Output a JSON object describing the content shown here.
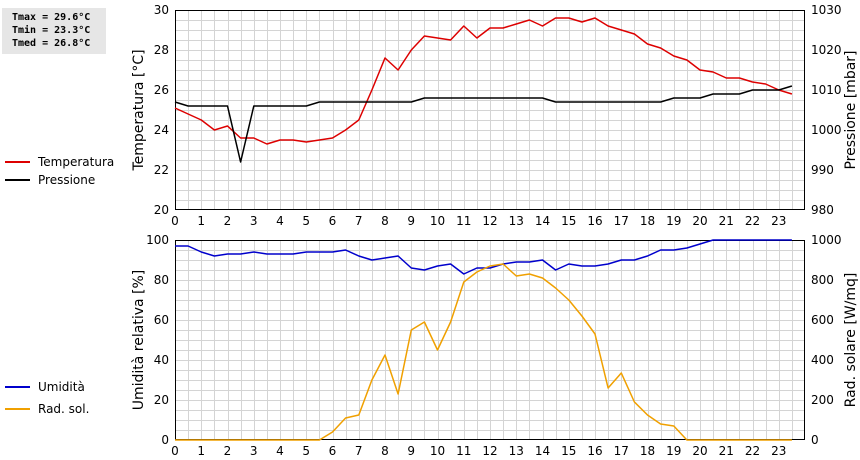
{
  "stats": {
    "tmax": "Tmax = 29.6°C",
    "tmin": "Tmin = 23.3°C",
    "tmed": "Tmed = 26.8°C"
  },
  "colors": {
    "temperature": "#dd0000",
    "pressure": "#000000",
    "humidity": "#0000cc",
    "radiation": "#f0a000",
    "grid": "#d4d4d4",
    "frame": "#000000"
  },
  "chart_data": [
    {
      "type": "line",
      "grid": true,
      "legend_placement": "left",
      "xlabel": "",
      "x_ticks": [
        "0",
        "1",
        "2",
        "3",
        "4",
        "5",
        "6",
        "7",
        "8",
        "9",
        "10",
        "11",
        "12",
        "13",
        "14",
        "15",
        "16",
        "17",
        "18",
        "19",
        "20",
        "21",
        "22",
        "23"
      ],
      "xlim": [
        0,
        24
      ],
      "ylabel_left": "Temperatura [°C]",
      "ylim_left": [
        20,
        30
      ],
      "yticks_left": [
        "20",
        "22",
        "24",
        "26",
        "28",
        "30"
      ],
      "ylabel_right": "Pressione [mbar]",
      "ylim_right": [
        980,
        1030
      ],
      "yticks_right": [
        "980",
        "990",
        "1000",
        "1010",
        "1020",
        "1030"
      ],
      "series": [
        {
          "name": "Temperatura",
          "axis": "left",
          "x": [
            0,
            0.5,
            1,
            1.5,
            2,
            2.5,
            3,
            3.5,
            4,
            4.5,
            5,
            5.5,
            6,
            6.5,
            7,
            7.5,
            8,
            8.5,
            9,
            9.5,
            10,
            10.5,
            11,
            11.5,
            12,
            12.5,
            13,
            13.5,
            14,
            14.5,
            15,
            15.5,
            16,
            16.5,
            17,
            17.5,
            18,
            18.5,
            19,
            19.5,
            20,
            20.5,
            21,
            21.5,
            22,
            22.5,
            23,
            23.5
          ],
          "y": [
            25.1,
            24.8,
            24.5,
            24.0,
            24.2,
            23.6,
            23.6,
            23.3,
            23.5,
            23.5,
            23.4,
            23.5,
            23.6,
            24.0,
            24.5,
            26.0,
            27.6,
            27.0,
            28.0,
            28.7,
            28.6,
            28.5,
            29.2,
            28.6,
            29.1,
            29.1,
            29.3,
            29.5,
            29.2,
            29.6,
            29.6,
            29.4,
            29.6,
            29.2,
            29.0,
            28.8,
            28.3,
            28.1,
            27.7,
            27.5,
            27.0,
            26.9,
            26.6,
            26.6,
            26.4,
            26.3,
            26.0,
            25.8
          ]
        },
        {
          "name": "Pressione",
          "axis": "right",
          "x": [
            0,
            0.5,
            1,
            1.5,
            2,
            2.5,
            3,
            3.5,
            4,
            4.5,
            5,
            5.5,
            6,
            6.5,
            7,
            7.5,
            8,
            8.5,
            9,
            9.5,
            10,
            10.5,
            11,
            11.5,
            12,
            12.5,
            13,
            13.5,
            14,
            14.5,
            15,
            15.5,
            16,
            16.5,
            17,
            17.5,
            18,
            18.5,
            19,
            19.5,
            20,
            20.5,
            21,
            21.5,
            22,
            22.5,
            23,
            23.5
          ],
          "y": [
            1007,
            1006,
            1006,
            1006,
            1006,
            992,
            1006,
            1006,
            1006,
            1006,
            1006,
            1007,
            1007,
            1007,
            1007,
            1007,
            1007,
            1007,
            1007,
            1008,
            1008,
            1008,
            1008,
            1008,
            1008,
            1008,
            1008,
            1008,
            1008,
            1007,
            1007,
            1007,
            1007,
            1007,
            1007,
            1007,
            1007,
            1007,
            1008,
            1008,
            1008,
            1009,
            1009,
            1009,
            1010,
            1010,
            1010,
            1011
          ]
        }
      ]
    },
    {
      "type": "line",
      "grid": true,
      "legend_placement": "left",
      "xlabel": "",
      "x_ticks": [
        "0",
        "1",
        "2",
        "3",
        "4",
        "5",
        "6",
        "7",
        "8",
        "9",
        "10",
        "11",
        "12",
        "13",
        "14",
        "15",
        "16",
        "17",
        "18",
        "19",
        "20",
        "21",
        "22",
        "23"
      ],
      "xlim": [
        0,
        24
      ],
      "ylabel_left": "Umidità relativa [%]",
      "ylim_left": [
        0,
        100
      ],
      "yticks_left": [
        "0",
        "20",
        "40",
        "60",
        "80",
        "100"
      ],
      "ylabel_right": "Rad. solare [W/mq]",
      "ylim_right": [
        0,
        1000
      ],
      "yticks_right": [
        "0",
        "200",
        "400",
        "600",
        "800",
        "1000"
      ],
      "series": [
        {
          "name": "Umidità",
          "axis": "left",
          "x": [
            0,
            0.5,
            1,
            1.5,
            2,
            2.5,
            3,
            3.5,
            4,
            4.5,
            5,
            5.5,
            6,
            6.5,
            7,
            7.5,
            8,
            8.5,
            9,
            9.5,
            10,
            10.5,
            11,
            11.5,
            12,
            12.5,
            13,
            13.5,
            14,
            14.5,
            15,
            15.5,
            16,
            16.5,
            17,
            17.5,
            18,
            18.5,
            19,
            19.5,
            20,
            20.5,
            21,
            21.5,
            22,
            22.5,
            23,
            23.5
          ],
          "y": [
            97,
            97,
            94,
            92,
            93,
            93,
            94,
            93,
            93,
            93,
            94,
            94,
            94,
            95,
            92,
            90,
            91,
            92,
            86,
            85,
            87,
            88,
            83,
            86,
            86,
            88,
            89,
            89,
            90,
            85,
            88,
            87,
            87,
            88,
            90,
            90,
            92,
            95,
            95,
            96,
            98,
            100,
            100,
            100,
            100,
            100,
            100,
            100
          ]
        },
        {
          "name": "Rad. sol.",
          "axis": "right",
          "x": [
            0,
            0.5,
            1,
            1.5,
            2,
            2.5,
            3,
            3.5,
            4,
            4.5,
            5,
            5.5,
            6,
            6.5,
            7,
            7.5,
            8,
            8.5,
            9,
            9.5,
            10,
            10.5,
            11,
            11.5,
            12,
            12.5,
            13,
            13.5,
            14,
            14.5,
            15,
            15.5,
            16,
            16.5,
            17,
            17.5,
            18,
            18.5,
            19,
            19.5,
            20,
            20.5,
            21,
            21.5,
            22,
            22.5,
            23,
            23.5
          ],
          "y": [
            0,
            0,
            0,
            0,
            0,
            0,
            0,
            0,
            0,
            0,
            0,
            0,
            40,
            110,
            125,
            300,
            425,
            230,
            550,
            590,
            450,
            590,
            790,
            840,
            870,
            880,
            820,
            830,
            810,
            760,
            700,
            620,
            530,
            260,
            335,
            190,
            125,
            80,
            70,
            0,
            0,
            0,
            0,
            0,
            0,
            0,
            0,
            0
          ]
        }
      ]
    }
  ]
}
